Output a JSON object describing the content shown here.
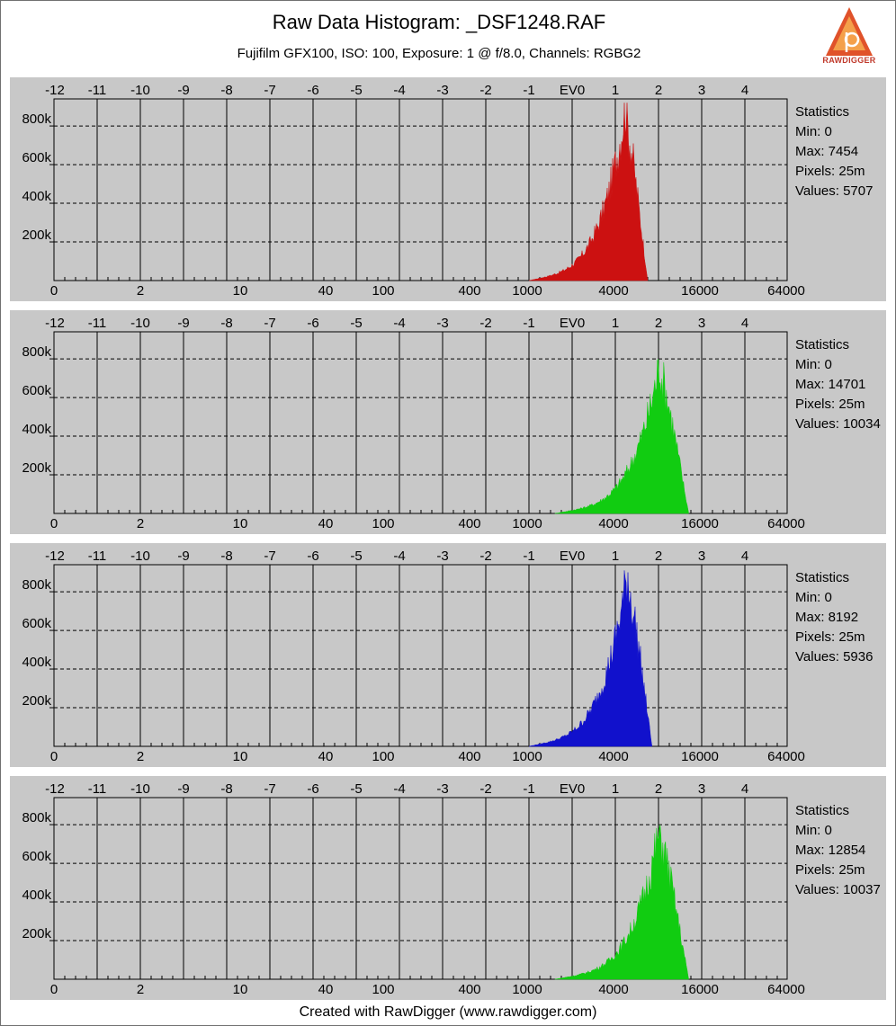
{
  "title": "Raw Data Histogram: _DSF1248.RAF",
  "subtitle": "Fujifilm GFX100, ISO: 100, Exposure: 1 @ f/8.0, Channels: RGBG2",
  "logo_text": "RAWDIGGER",
  "footer": "Created with RawDigger (www.rawdigger.com)",
  "colors": {
    "panel_bg": "#c8c8c8",
    "red": "#cc1111",
    "green": "#11cc11",
    "blue": "#1111cc"
  },
  "chart_data": [
    {
      "type": "area",
      "channel": "R",
      "color": "#cc1111",
      "ev_ticks": [
        "-12",
        "-11",
        "-10",
        "-9",
        "-8",
        "-7",
        "-6",
        "-5",
        "-4",
        "-3",
        "-2",
        "-1",
        "EV0",
        "1",
        "2",
        "3",
        "4"
      ],
      "value_ticks": [
        "0",
        "2",
        "10",
        "40",
        "100",
        "400",
        "1000",
        "4000",
        "16000",
        "64000"
      ],
      "y_ticks": [
        "200k",
        "400k",
        "600k",
        "800k"
      ],
      "ylim": [
        0,
        940000
      ],
      "grid": true,
      "x_scale": "log2",
      "stats_title": "Statistics",
      "min": "Min: 0",
      "max": "Max: 7454",
      "pixels": "Pixels: 25m",
      "values": "Values: 5707",
      "peak_ev": 1.25,
      "peak_count": 920000,
      "low_ev": -1.0,
      "high_ev": 1.75
    },
    {
      "type": "area",
      "channel": "G",
      "color": "#11cc11",
      "ev_ticks": [
        "-12",
        "-11",
        "-10",
        "-9",
        "-8",
        "-7",
        "-6",
        "-5",
        "-4",
        "-3",
        "-2",
        "-1",
        "EV0",
        "1",
        "2",
        "3",
        "4"
      ],
      "value_ticks": [
        "0",
        "2",
        "10",
        "40",
        "100",
        "400",
        "1000",
        "4000",
        "16000",
        "64000"
      ],
      "y_ticks": [
        "200k",
        "400k",
        "600k",
        "800k"
      ],
      "ylim": [
        0,
        940000
      ],
      "grid": true,
      "x_scale": "log2",
      "stats_title": "Statistics",
      "min": "Min: 0",
      "max": "Max: 14701",
      "pixels": "Pixels: 25m",
      "values": "Values: 10034",
      "peak_ev": 2.05,
      "peak_count": 800000,
      "low_ev": -0.4,
      "high_ev": 2.7
    },
    {
      "type": "area",
      "channel": "B",
      "color": "#1111cc",
      "ev_ticks": [
        "-12",
        "-11",
        "-10",
        "-9",
        "-8",
        "-7",
        "-6",
        "-5",
        "-4",
        "-3",
        "-2",
        "-1",
        "EV0",
        "1",
        "2",
        "3",
        "4"
      ],
      "value_ticks": [
        "0",
        "2",
        "10",
        "40",
        "100",
        "400",
        "1000",
        "4000",
        "16000",
        "64000"
      ],
      "y_ticks": [
        "200k",
        "400k",
        "600k",
        "800k"
      ],
      "ylim": [
        0,
        940000
      ],
      "grid": true,
      "x_scale": "log2",
      "stats_title": "Statistics",
      "min": "Min: 0",
      "max": "Max: 8192",
      "pixels": "Pixels: 25m",
      "values": "Values: 5936",
      "peak_ev": 1.3,
      "peak_count": 910000,
      "low_ev": -1.0,
      "high_ev": 1.85
    },
    {
      "type": "area",
      "channel": "G2",
      "color": "#11cc11",
      "ev_ticks": [
        "-12",
        "-11",
        "-10",
        "-9",
        "-8",
        "-7",
        "-6",
        "-5",
        "-4",
        "-3",
        "-2",
        "-1",
        "EV0",
        "1",
        "2",
        "3",
        "4"
      ],
      "value_ticks": [
        "0",
        "2",
        "10",
        "40",
        "100",
        "400",
        "1000",
        "4000",
        "16000",
        "64000"
      ],
      "y_ticks": [
        "200k",
        "400k",
        "600k",
        "800k"
      ],
      "ylim": [
        0,
        940000
      ],
      "grid": true,
      "x_scale": "log2",
      "stats_title": "Statistics",
      "min": "Min: 0",
      "max": "Max: 12854",
      "pixels": "Pixels: 25m",
      "values": "Values: 10037",
      "peak_ev": 2.05,
      "peak_count": 800000,
      "low_ev": -0.4,
      "high_ev": 2.7
    }
  ]
}
